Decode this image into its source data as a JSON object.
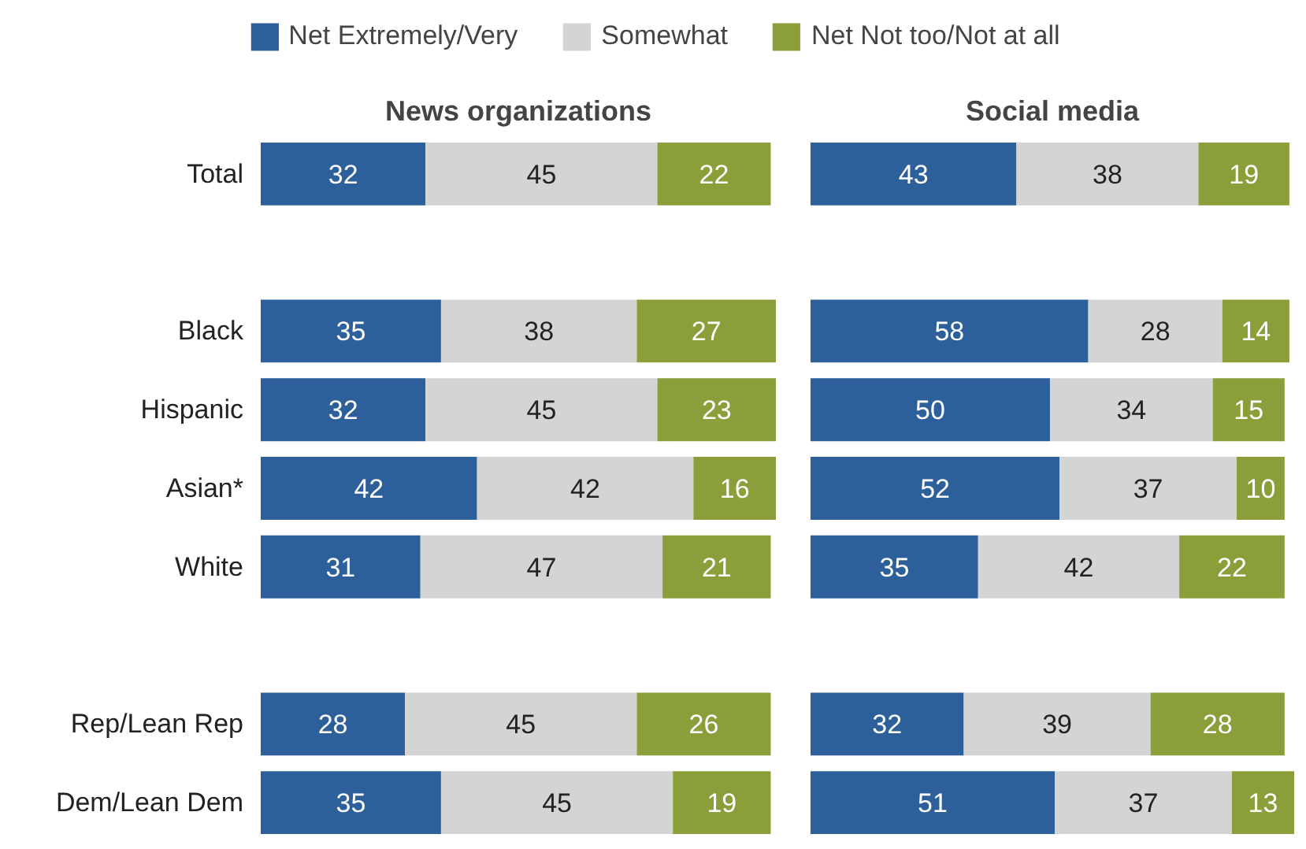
{
  "chart_data": [
    {
      "type": "bar",
      "orientation": "horizontal",
      "stacked": true,
      "title": "News organizations",
      "categories": [
        "Total",
        null,
        "Black",
        "Hispanic",
        "Asian*",
        "White",
        null,
        "Rep/Lean Rep",
        "Dem/Lean Dem"
      ],
      "series": [
        {
          "name": "Net Extremely/Very",
          "color": "#2d5f9a",
          "values": [
            32,
            null,
            35,
            32,
            42,
            31,
            null,
            28,
            35
          ]
        },
        {
          "name": "Somewhat",
          "color": "#d4d4d4",
          "values": [
            45,
            null,
            38,
            45,
            42,
            47,
            null,
            45,
            45
          ]
        },
        {
          "name": "Net Not too/Not at all",
          "color": "#8a9f3a",
          "values": [
            22,
            null,
            27,
            23,
            16,
            21,
            null,
            26,
            19
          ]
        }
      ],
      "data_labels": true,
      "legend": "top",
      "tick_labels": "y",
      "grid": false
    },
    {
      "type": "bar",
      "orientation": "horizontal",
      "stacked": true,
      "title": "Social media",
      "categories": [
        null,
        null,
        null,
        null,
        null,
        null,
        null,
        null,
        null
      ],
      "series": [
        {
          "color": "#2d5f9a",
          "values": [
            43,
            null,
            58,
            50,
            52,
            35,
            null,
            32,
            51
          ]
        },
        {
          "color": "#d4d4d4",
          "values": [
            38,
            null,
            28,
            34,
            37,
            42,
            null,
            39,
            37
          ]
        },
        {
          "color": "#8a9f3a",
          "values": [
            19,
            null,
            14,
            15,
            10,
            22,
            null,
            28,
            13
          ]
        }
      ],
      "data_labels": true,
      "tick_labels": false,
      "grid": false
    }
  ]
}
